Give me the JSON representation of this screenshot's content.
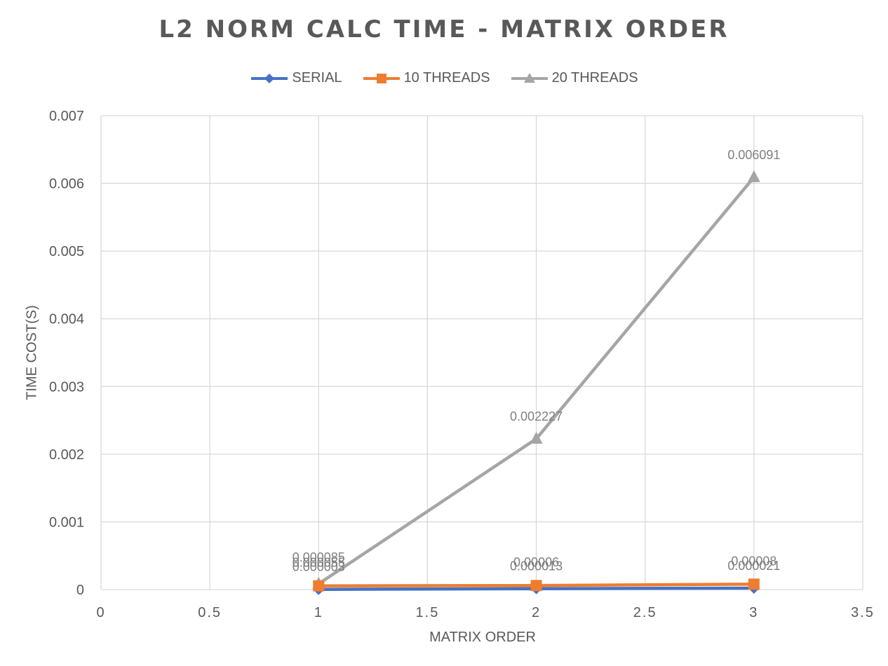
{
  "chart_data": {
    "type": "scatter",
    "title": "L2 NORM CALC TIME - MATRIX ORDER",
    "xlabel": "MATRIX ORDER",
    "ylabel": "TIME COST(S)",
    "xlim": [
      0,
      3.5
    ],
    "ylim": [
      0,
      0.007
    ],
    "x_ticks": [
      0,
      0.5,
      1,
      1.5,
      2,
      2.5,
      3,
      3.5
    ],
    "x_tick_labels": [
      "0",
      "0.5",
      "1",
      "1.5",
      "2",
      "2.5",
      "3",
      "3.5"
    ],
    "y_ticks": [
      0,
      0.001,
      0.002,
      0.003,
      0.004,
      0.005,
      0.006,
      0.007
    ],
    "y_tick_labels": [
      "0",
      "0.001",
      "0.002",
      "0.003",
      "0.004",
      "0.005",
      "0.006",
      "0.007"
    ],
    "grid": true,
    "legend_position": "top",
    "series": [
      {
        "name": "SERIAL",
        "color": "#4472C4",
        "marker": "diamond",
        "x": [
          1,
          2,
          3
        ],
        "y": [
          3e-06,
          1.3e-05,
          2.1e-05
        ],
        "labels": [
          "0.000003",
          "0.000013",
          "0.000021"
        ]
      },
      {
        "name": "10 THREADS",
        "color": "#ED7D31",
        "marker": "square",
        "x": [
          1,
          2,
          3
        ],
        "y": [
          5.5e-05,
          6e-05,
          8e-05
        ],
        "labels": [
          "0.000055",
          "0.00006",
          "0.00008"
        ]
      },
      {
        "name": "20 THREADS",
        "color": "#A5A5A5",
        "marker": "triangle",
        "x": [
          1,
          2,
          3
        ],
        "y": [
          8.5e-05,
          0.002227,
          0.006091
        ],
        "labels": [
          "0.000085",
          "0.002227",
          "0.006091"
        ]
      }
    ]
  }
}
